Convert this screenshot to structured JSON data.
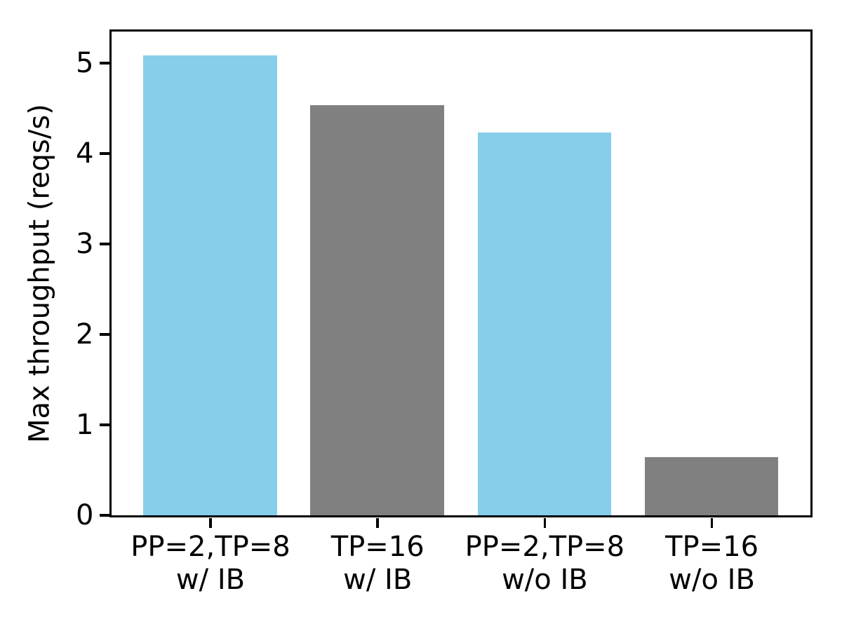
{
  "chart_data": {
    "type": "bar",
    "title": "",
    "xlabel": "",
    "ylabel": "Max throughput (reqs/s)",
    "categories": [
      "PP=2,TP=8\nw/ IB",
      "TP=16\nw/ IB",
      "PP=2,TP=8\nw/o IB",
      "TP=16\nw/o IB"
    ],
    "values": [
      5.08,
      4.53,
      4.23,
      0.64
    ],
    "bar_colors": [
      "#87CEEB",
      "#808080",
      "#87CEEB",
      "#808080"
    ],
    "yticks": [
      0,
      1,
      2,
      3,
      4,
      5
    ],
    "ylim": [
      0,
      5.35
    ],
    "grid": false,
    "legend": null,
    "axis_color": "#000000",
    "background_color": "#ffffff"
  }
}
